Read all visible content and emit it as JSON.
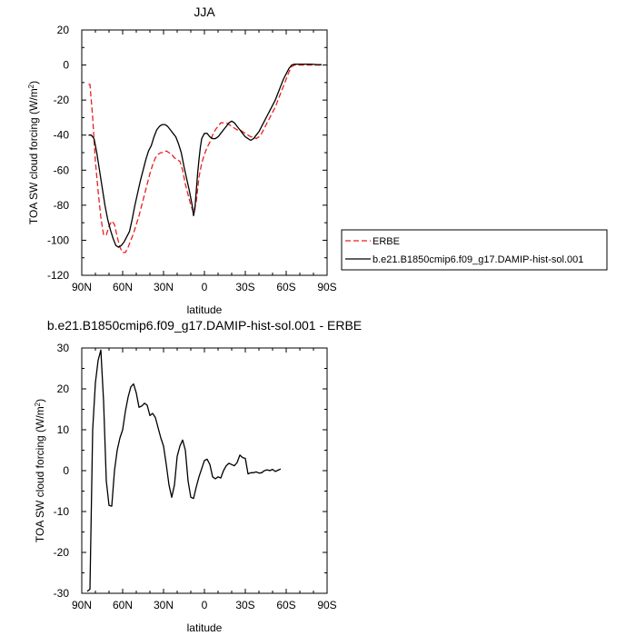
{
  "chart_data": [
    {
      "type": "line",
      "title": "JJA",
      "xlabel": "latitude",
      "ylabel": "TOA SW cloud forcing (W/m",
      "ylabel_sup": "2",
      "ylabel_close": ")",
      "xlim": [
        90,
        -90
      ],
      "ylim": [
        -120,
        20
      ],
      "xticks": [
        90,
        60,
        30,
        0,
        -30,
        -60,
        -90
      ],
      "xtick_labels": [
        "90N",
        "60N",
        "30N",
        "0",
        "30S",
        "60S",
        "90S"
      ],
      "yticks": [
        20,
        0,
        -20,
        -40,
        -60,
        -80,
        -100,
        -120
      ],
      "ytick_labels": [
        "20",
        "0",
        "-20",
        "-40",
        "-60",
        "-80",
        "-100",
        "-120"
      ],
      "legend_position": "right",
      "series": [
        {
          "name": "ERBE",
          "color": "#e8211e",
          "dash": "6,3",
          "points": [
            [
              85,
              -11
            ],
            [
              84,
              -11
            ],
            [
              82,
              -30
            ],
            [
              80,
              -55
            ],
            [
              78,
              -72
            ],
            [
              76,
              -87
            ],
            [
              74,
              -97
            ],
            [
              72,
              -97
            ],
            [
              70,
              -92
            ],
            [
              68,
              -89
            ],
            [
              66,
              -91
            ],
            [
              64,
              -98
            ],
            [
              62,
              -104
            ],
            [
              60,
              -107
            ],
            [
              58,
              -107
            ],
            [
              56,
              -104
            ],
            [
              54,
              -100
            ],
            [
              52,
              -96
            ],
            [
              50,
              -91
            ],
            [
              48,
              -86
            ],
            [
              46,
              -80
            ],
            [
              44,
              -74
            ],
            [
              42,
              -68
            ],
            [
              40,
              -62
            ],
            [
              38,
              -57
            ],
            [
              36,
              -53
            ],
            [
              34,
              -51
            ],
            [
              32,
              -50
            ],
            [
              30,
              -50
            ],
            [
              28,
              -49
            ],
            [
              26,
              -50
            ],
            [
              24,
              -51
            ],
            [
              22,
              -53
            ],
            [
              20,
              -54
            ],
            [
              18,
              -55
            ],
            [
              16,
              -60
            ],
            [
              14,
              -68
            ],
            [
              12,
              -74
            ],
            [
              10,
              -80
            ],
            [
              8,
              -84
            ],
            [
              6,
              -78
            ],
            [
              4,
              -64
            ],
            [
              2,
              -56
            ],
            [
              0,
              -51
            ],
            [
              -2,
              -47
            ],
            [
              -4,
              -44
            ],
            [
              -6,
              -40
            ],
            [
              -8,
              -37
            ],
            [
              -10,
              -35
            ],
            [
              -12,
              -33
            ],
            [
              -14,
              -33
            ],
            [
              -16,
              -33
            ],
            [
              -18,
              -34
            ],
            [
              -20,
              -35
            ],
            [
              -22,
              -36
            ],
            [
              -24,
              -37
            ],
            [
              -26,
              -37
            ],
            [
              -28,
              -38
            ],
            [
              -30,
              -39
            ],
            [
              -32,
              -40
            ],
            [
              -34,
              -41
            ],
            [
              -36,
              -41
            ],
            [
              -38,
              -42
            ],
            [
              -40,
              -41
            ],
            [
              -42,
              -39
            ],
            [
              -44,
              -36
            ],
            [
              -46,
              -33
            ],
            [
              -48,
              -30
            ],
            [
              -50,
              -27
            ],
            [
              -52,
              -24
            ],
            [
              -54,
              -20
            ],
            [
              -56,
              -16
            ],
            [
              -58,
              -12
            ],
            [
              -60,
              -8
            ],
            [
              -62,
              -4
            ],
            [
              -64,
              -1
            ],
            [
              -66,
              0
            ],
            [
              -68,
              0
            ],
            [
              -72,
              0
            ],
            [
              -76,
              0
            ],
            [
              -80,
              0
            ],
            [
              -84,
              0
            ],
            [
              -86,
              0
            ]
          ]
        },
        {
          "name": "b.e21.B1850cmip6.f09_g17.DAMIP-hist-sol.001",
          "color": "#000000",
          "dash": "",
          "points": [
            [
              85,
              -40
            ],
            [
              83,
              -40
            ],
            [
              81,
              -42
            ],
            [
              79,
              -50
            ],
            [
              77,
              -60
            ],
            [
              75,
              -70
            ],
            [
              73,
              -80
            ],
            [
              71,
              -88
            ],
            [
              69,
              -94
            ],
            [
              67,
              -99
            ],
            [
              65,
              -103
            ],
            [
              63,
              -104
            ],
            [
              61,
              -103
            ],
            [
              59,
              -101
            ],
            [
              57,
              -98
            ],
            [
              55,
              -95
            ],
            [
              53,
              -88
            ],
            [
              51,
              -80
            ],
            [
              49,
              -73
            ],
            [
              47,
              -66
            ],
            [
              45,
              -60
            ],
            [
              43,
              -54
            ],
            [
              41,
              -49
            ],
            [
              39,
              -46
            ],
            [
              37,
              -41
            ],
            [
              35,
              -37
            ],
            [
              33,
              -35
            ],
            [
              31,
              -34
            ],
            [
              29,
              -34
            ],
            [
              27,
              -35
            ],
            [
              25,
              -37
            ],
            [
              23,
              -39
            ],
            [
              21,
              -41
            ],
            [
              19,
              -45
            ],
            [
              17,
              -50
            ],
            [
              15,
              -58
            ],
            [
              13,
              -65
            ],
            [
              11,
              -72
            ],
            [
              9,
              -80
            ],
            [
              8,
              -86
            ],
            [
              7,
              -82
            ],
            [
              6,
              -72
            ],
            [
              5,
              -62
            ],
            [
              4,
              -54
            ],
            [
              3,
              -47
            ],
            [
              2,
              -42
            ],
            [
              0,
              -39
            ],
            [
              -2,
              -39
            ],
            [
              -4,
              -41
            ],
            [
              -6,
              -42
            ],
            [
              -8,
              -42
            ],
            [
              -10,
              -41
            ],
            [
              -12,
              -39
            ],
            [
              -14,
              -37
            ],
            [
              -16,
              -35
            ],
            [
              -18,
              -33
            ],
            [
              -20,
              -32
            ],
            [
              -22,
              -33
            ],
            [
              -24,
              -35
            ],
            [
              -26,
              -37
            ],
            [
              -28,
              -39
            ],
            [
              -30,
              -41
            ],
            [
              -32,
              -42
            ],
            [
              -34,
              -43
            ],
            [
              -36,
              -42
            ],
            [
              -38,
              -40
            ],
            [
              -40,
              -38
            ],
            [
              -42,
              -35
            ],
            [
              -44,
              -32
            ],
            [
              -46,
              -29
            ],
            [
              -48,
              -26
            ],
            [
              -50,
              -23
            ],
            [
              -52,
              -20
            ],
            [
              -54,
              -16
            ],
            [
              -56,
              -12
            ],
            [
              -58,
              -8
            ],
            [
              -60,
              -5
            ],
            [
              -62,
              -2
            ],
            [
              -64,
              0
            ],
            [
              -66,
              0.5
            ],
            [
              -70,
              0.5
            ],
            [
              -74,
              0.5
            ],
            [
              -78,
              0.5
            ],
            [
              -82,
              0.3
            ],
            [
              -86,
              0.2
            ]
          ]
        }
      ]
    },
    {
      "type": "line",
      "title": "b.e21.B1850cmip6.f09_g17.DAMIP-hist-sol.001 - ERBE",
      "xlabel": "latitude",
      "ylabel": "TOA SW cloud forcing (W/m",
      "ylabel_sup": "2",
      "ylabel_close": ")",
      "xlim": [
        90,
        -90
      ],
      "ylim": [
        -30,
        30
      ],
      "xticks": [
        90,
        60,
        30,
        0,
        -30,
        -60,
        -90
      ],
      "xtick_labels": [
        "90N",
        "60N",
        "30N",
        "0",
        "30S",
        "60S",
        "90S"
      ],
      "yticks": [
        30,
        20,
        10,
        0,
        -10,
        -20,
        -30
      ],
      "ytick_labels": [
        "30",
        "20",
        "10",
        "0",
        "-10",
        "-20",
        "-30"
      ],
      "series": [
        {
          "color": "#000000",
          "dash": "",
          "points": [
            [
              86,
              -29.5
            ],
            [
              84,
              -29
            ],
            [
              82,
              10
            ],
            [
              80,
              21.5
            ],
            [
              78,
              27
            ],
            [
              76,
              29.5
            ],
            [
              74,
              17
            ],
            [
              72,
              -2.5
            ],
            [
              70,
              -8.5
            ],
            [
              68,
              -8.7
            ],
            [
              66,
              0
            ],
            [
              64,
              5
            ],
            [
              62,
              8
            ],
            [
              60,
              10
            ],
            [
              58,
              14.5
            ],
            [
              56,
              18
            ],
            [
              54,
              20.5
            ],
            [
              52,
              21.2
            ],
            [
              50,
              19
            ],
            [
              48,
              15.5
            ],
            [
              46,
              15.8
            ],
            [
              44,
              16.5
            ],
            [
              42,
              16
            ],
            [
              40,
              13.5
            ],
            [
              38,
              14
            ],
            [
              36,
              13
            ],
            [
              34,
              10.5
            ],
            [
              32,
              8
            ],
            [
              30,
              6
            ],
            [
              28,
              1.5
            ],
            [
              26,
              -3.5
            ],
            [
              24,
              -6.5
            ],
            [
              22,
              -3.5
            ],
            [
              20,
              3.5
            ],
            [
              18,
              6
            ],
            [
              16,
              7.5
            ],
            [
              14,
              5
            ],
            [
              12,
              -2.5
            ],
            [
              10,
              -6.5
            ],
            [
              8,
              -6.8
            ],
            [
              6,
              -4
            ],
            [
              4,
              -1.5
            ],
            [
              2,
              0.5
            ],
            [
              0,
              2.5
            ],
            [
              -2,
              2.8
            ],
            [
              -4,
              1.5
            ],
            [
              -6,
              -1.5
            ],
            [
              -8,
              -2
            ],
            [
              -10,
              -1.5
            ],
            [
              -12,
              -1.8
            ],
            [
              -14,
              0
            ],
            [
              -16,
              1.2
            ],
            [
              -18,
              1.8
            ],
            [
              -20,
              1.5
            ],
            [
              -22,
              1.2
            ],
            [
              -24,
              2
            ],
            [
              -26,
              3.8
            ],
            [
              -28,
              3.2
            ],
            [
              -30,
              3
            ],
            [
              -32,
              -0.8
            ],
            [
              -34,
              -0.5
            ],
            [
              -36,
              -0.5
            ],
            [
              -38,
              -0.3
            ],
            [
              -40,
              -0.6
            ],
            [
              -42,
              -0.5
            ],
            [
              -44,
              0
            ],
            [
              -46,
              0.2
            ],
            [
              -48,
              0
            ],
            [
              -50,
              0.3
            ],
            [
              -52,
              -0.2
            ],
            [
              -54,
              0.1
            ],
            [
              -56,
              0.4
            ]
          ]
        }
      ]
    }
  ]
}
